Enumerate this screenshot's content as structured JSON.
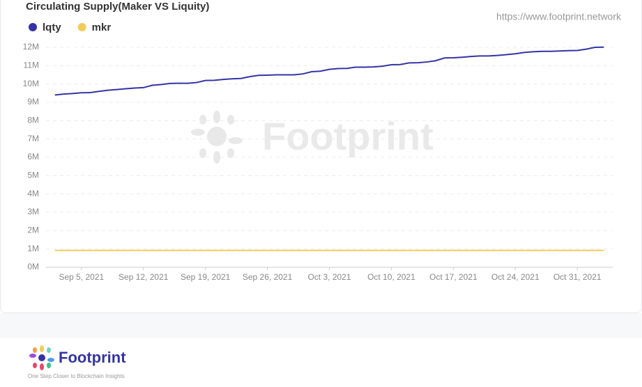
{
  "chart_data": {
    "type": "line",
    "title": "Circulating Supply(Maker VS Liquity)",
    "source": "https://www.footprint.network",
    "watermark": "Footprint",
    "x": [
      "2021-09-02",
      "2021-09-03",
      "2021-09-04",
      "2021-09-05",
      "2021-09-06",
      "2021-09-07",
      "2021-09-08",
      "2021-09-09",
      "2021-09-10",
      "2021-09-11",
      "2021-09-12",
      "2021-09-13",
      "2021-09-14",
      "2021-09-15",
      "2021-09-16",
      "2021-09-17",
      "2021-09-18",
      "2021-09-19",
      "2021-09-20",
      "2021-09-21",
      "2021-09-22",
      "2021-09-23",
      "2021-09-24",
      "2021-09-25",
      "2021-09-26",
      "2021-09-27",
      "2021-09-28",
      "2021-09-29",
      "2021-09-30",
      "2021-10-01",
      "2021-10-02",
      "2021-10-03",
      "2021-10-04",
      "2021-10-05",
      "2021-10-06",
      "2021-10-07",
      "2021-10-08",
      "2021-10-09",
      "2021-10-10",
      "2021-10-11",
      "2021-10-12",
      "2021-10-13",
      "2021-10-14",
      "2021-10-15",
      "2021-10-16",
      "2021-10-17",
      "2021-10-18",
      "2021-10-19",
      "2021-10-20",
      "2021-10-21",
      "2021-10-22",
      "2021-10-23",
      "2021-10-24",
      "2021-10-25",
      "2021-10-26",
      "2021-10-27",
      "2021-10-28",
      "2021-10-29",
      "2021-10-30",
      "2021-10-31",
      "2021-11-01",
      "2021-11-02",
      "2021-11-03"
    ],
    "series": [
      {
        "name": "lqty",
        "color": "#3434a4",
        "values": [
          9400000,
          9450000,
          9480000,
          9520000,
          9530000,
          9600000,
          9660000,
          9700000,
          9740000,
          9780000,
          9800000,
          9930000,
          9970000,
          10030000,
          10040000,
          10040000,
          10080000,
          10190000,
          10200000,
          10250000,
          10280000,
          10300000,
          10400000,
          10470000,
          10480000,
          10500000,
          10500000,
          10500000,
          10550000,
          10670000,
          10700000,
          10800000,
          10840000,
          10850000,
          10920000,
          10920000,
          10930000,
          10970000,
          11050000,
          11060000,
          11150000,
          11160000,
          11200000,
          11270000,
          11420000,
          11430000,
          11460000,
          11500000,
          11530000,
          11530000,
          11560000,
          11600000,
          11650000,
          11720000,
          11760000,
          11780000,
          11780000,
          11800000,
          11820000,
          11830000,
          11900000,
          12000000,
          12010000
        ]
      },
      {
        "name": "mkr",
        "color": "#f2cc5a",
        "values": [
          920000,
          920000,
          920000,
          920000,
          920000,
          920000,
          920000,
          920000,
          920000,
          920000,
          920000,
          920000,
          920000,
          920000,
          920000,
          920000,
          920000,
          920000,
          920000,
          920000,
          920000,
          920000,
          920000,
          920000,
          920000,
          920000,
          920000,
          920000,
          920000,
          920000,
          920000,
          920000,
          920000,
          920000,
          920000,
          920000,
          920000,
          920000,
          920000,
          920000,
          920000,
          920000,
          920000,
          920000,
          920000,
          920000,
          920000,
          920000,
          920000,
          920000,
          920000,
          920000,
          920000,
          920000,
          920000,
          920000,
          920000,
          920000,
          920000,
          920000,
          920000,
          920000,
          920000
        ]
      }
    ],
    "xlim": [
      "2021-09-01",
      "2021-11-04"
    ],
    "xticks": [
      {
        "value": "2021-09-05",
        "label": "Sep 5, 2021"
      },
      {
        "value": "2021-09-12",
        "label": "Sep 12, 2021"
      },
      {
        "value": "2021-09-19",
        "label": "Sep 19, 2021"
      },
      {
        "value": "2021-09-26",
        "label": "Sep 26, 2021"
      },
      {
        "value": "2021-10-03",
        "label": "Oct 3, 2021"
      },
      {
        "value": "2021-10-10",
        "label": "Oct 10, 2021"
      },
      {
        "value": "2021-10-17",
        "label": "Oct 17, 2021"
      },
      {
        "value": "2021-10-24",
        "label": "Oct 24, 2021"
      },
      {
        "value": "2021-10-31",
        "label": "Oct 31, 2021"
      }
    ],
    "ylim": [
      0,
      12000000
    ],
    "yticks": [
      {
        "value": 0,
        "label": "0M"
      },
      {
        "value": 1000000,
        "label": "1M"
      },
      {
        "value": 2000000,
        "label": "2M"
      },
      {
        "value": 3000000,
        "label": "3M"
      },
      {
        "value": 4000000,
        "label": "4M"
      },
      {
        "value": 5000000,
        "label": "5M"
      },
      {
        "value": 6000000,
        "label": "6M"
      },
      {
        "value": 7000000,
        "label": "7M"
      },
      {
        "value": 8000000,
        "label": "8M"
      },
      {
        "value": 9000000,
        "label": "9M"
      },
      {
        "value": 10000000,
        "label": "10M"
      },
      {
        "value": 11000000,
        "label": "11M"
      },
      {
        "value": 12000000,
        "label": "12M"
      }
    ],
    "grid": true
  },
  "footer": {
    "brand": "Footprint",
    "tagline": "One Step Closer to Blockchain Insights"
  }
}
